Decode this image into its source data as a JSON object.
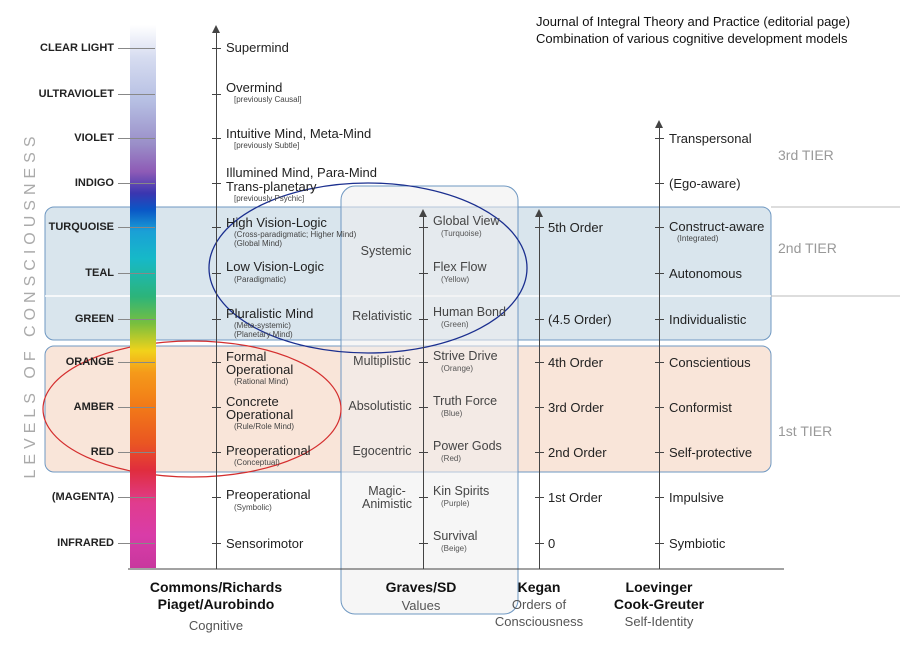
{
  "header": {
    "journal": "Journal of Integral Theory and Practice (editorial page)",
    "subtitle": "Combination of various cognitive development models"
  },
  "side_label": "LEVELS OF CONSCIOUSNESS",
  "levels": [
    "CLEAR LIGHT",
    "ULTRAVIOLET",
    "VIOLET",
    "INDIGO",
    "TURQUOISE",
    "TEAL",
    "GREEN",
    "ORANGE",
    "AMBER",
    "RED",
    "(MAGENTA)",
    "INFRARED"
  ],
  "cognitive": {
    "supermind": "Supermind",
    "overmind": "Overmind",
    "overmind_sub": "[previously Causal]",
    "intuitive": "Intuitive Mind, Meta-Mind",
    "intuitive_sub": "[previously Subtle]",
    "illumined": "Illumined Mind, Para-Mind",
    "illumined_2": "Trans-planetary",
    "illumined_sub": "[previously Psychic]",
    "high_vl": "High Vision-Logic",
    "high_vl_sub1": "(Cross-paradigmatic; Higher Mind)",
    "high_vl_sub2": "(Global Mind)",
    "low_vl": "Low Vision-Logic",
    "low_vl_sub": "(Paradigmatic)",
    "pluralistic": "Pluralistic Mind",
    "pluralistic_sub1": "(Meta-systemic)",
    "pluralistic_sub2": "(Planetary Mind)",
    "formal": "Formal",
    "formal_2": "Operational",
    "formal_sub": "(Rational Mind)",
    "concrete": "Concrete",
    "concrete_2": "Operational",
    "concrete_sub": "(Rule/Role Mind)",
    "preop_red": "Preoperational",
    "preop_red_sub": "(Conceptual)",
    "preop_mag": "Preoperational",
    "preop_mag_sub": "(Symbolic)",
    "sensori": "Sensorimotor"
  },
  "values": {
    "systemic": "Systemic",
    "relativistic": "Relativistic",
    "multiplistic": "Multiplistic",
    "absolutistic": "Absolutistic",
    "egocentric": "Egocentric",
    "magic": "Magic-",
    "animistic": "Animistic"
  },
  "graves": [
    {
      "main": "Global View",
      "sub": "(Turquoise)"
    },
    {
      "main": "Flex Flow",
      "sub": "(Yellow)"
    },
    {
      "main": "Human Bond",
      "sub": "(Green)"
    },
    {
      "main": "Strive Drive",
      "sub": "(Orange)"
    },
    {
      "main": "Truth Force",
      "sub": "(Blue)"
    },
    {
      "main": "Power Gods",
      "sub": "(Red)"
    },
    {
      "main": "Kin Spirits",
      "sub": "(Purple)"
    },
    {
      "main": "Survival",
      "sub": "(Beige)"
    }
  ],
  "kegan": [
    "5th Order",
    "(4.5 Order)",
    "4th Order",
    "3rd Order",
    "2nd Order",
    "1st Order",
    "0"
  ],
  "loevinger": {
    "transpersonal": "Transpersonal",
    "ego_aware": "(Ego-aware)",
    "construct": "Construct-aware",
    "construct_sub": "(Integrated)",
    "autonomous": "Autonomous",
    "individualistic": "Individualistic",
    "conscientious": "Conscientious",
    "conformist": "Conformist",
    "self_protective": "Self-protective",
    "impulsive": "Impulsive",
    "symbiotic": "Symbiotic"
  },
  "tiers": [
    "3rd TIER",
    "2nd TIER",
    "1st TIER"
  ],
  "columns": {
    "commons_1": "Commons/Richards",
    "commons_2": "Piaget/Aurobindo",
    "commons_sub": "Cognitive",
    "graves_1": "Graves/SD",
    "graves_sub": "Values",
    "kegan_1": "Kegan",
    "kegan_sub1": "Orders of",
    "kegan_sub2": "Consciousness",
    "loev_1": "Loevinger",
    "loev_2": "Cook-Greuter",
    "loev_sub": "Self-Identity"
  },
  "colors": {
    "tier2_fill": "#c9dae6",
    "tier1_fill": "#f7dfcf",
    "box_border": "#6f98c2",
    "blue_ellipse": "#1b2f8f",
    "red_ellipse": "#d42e2e"
  }
}
